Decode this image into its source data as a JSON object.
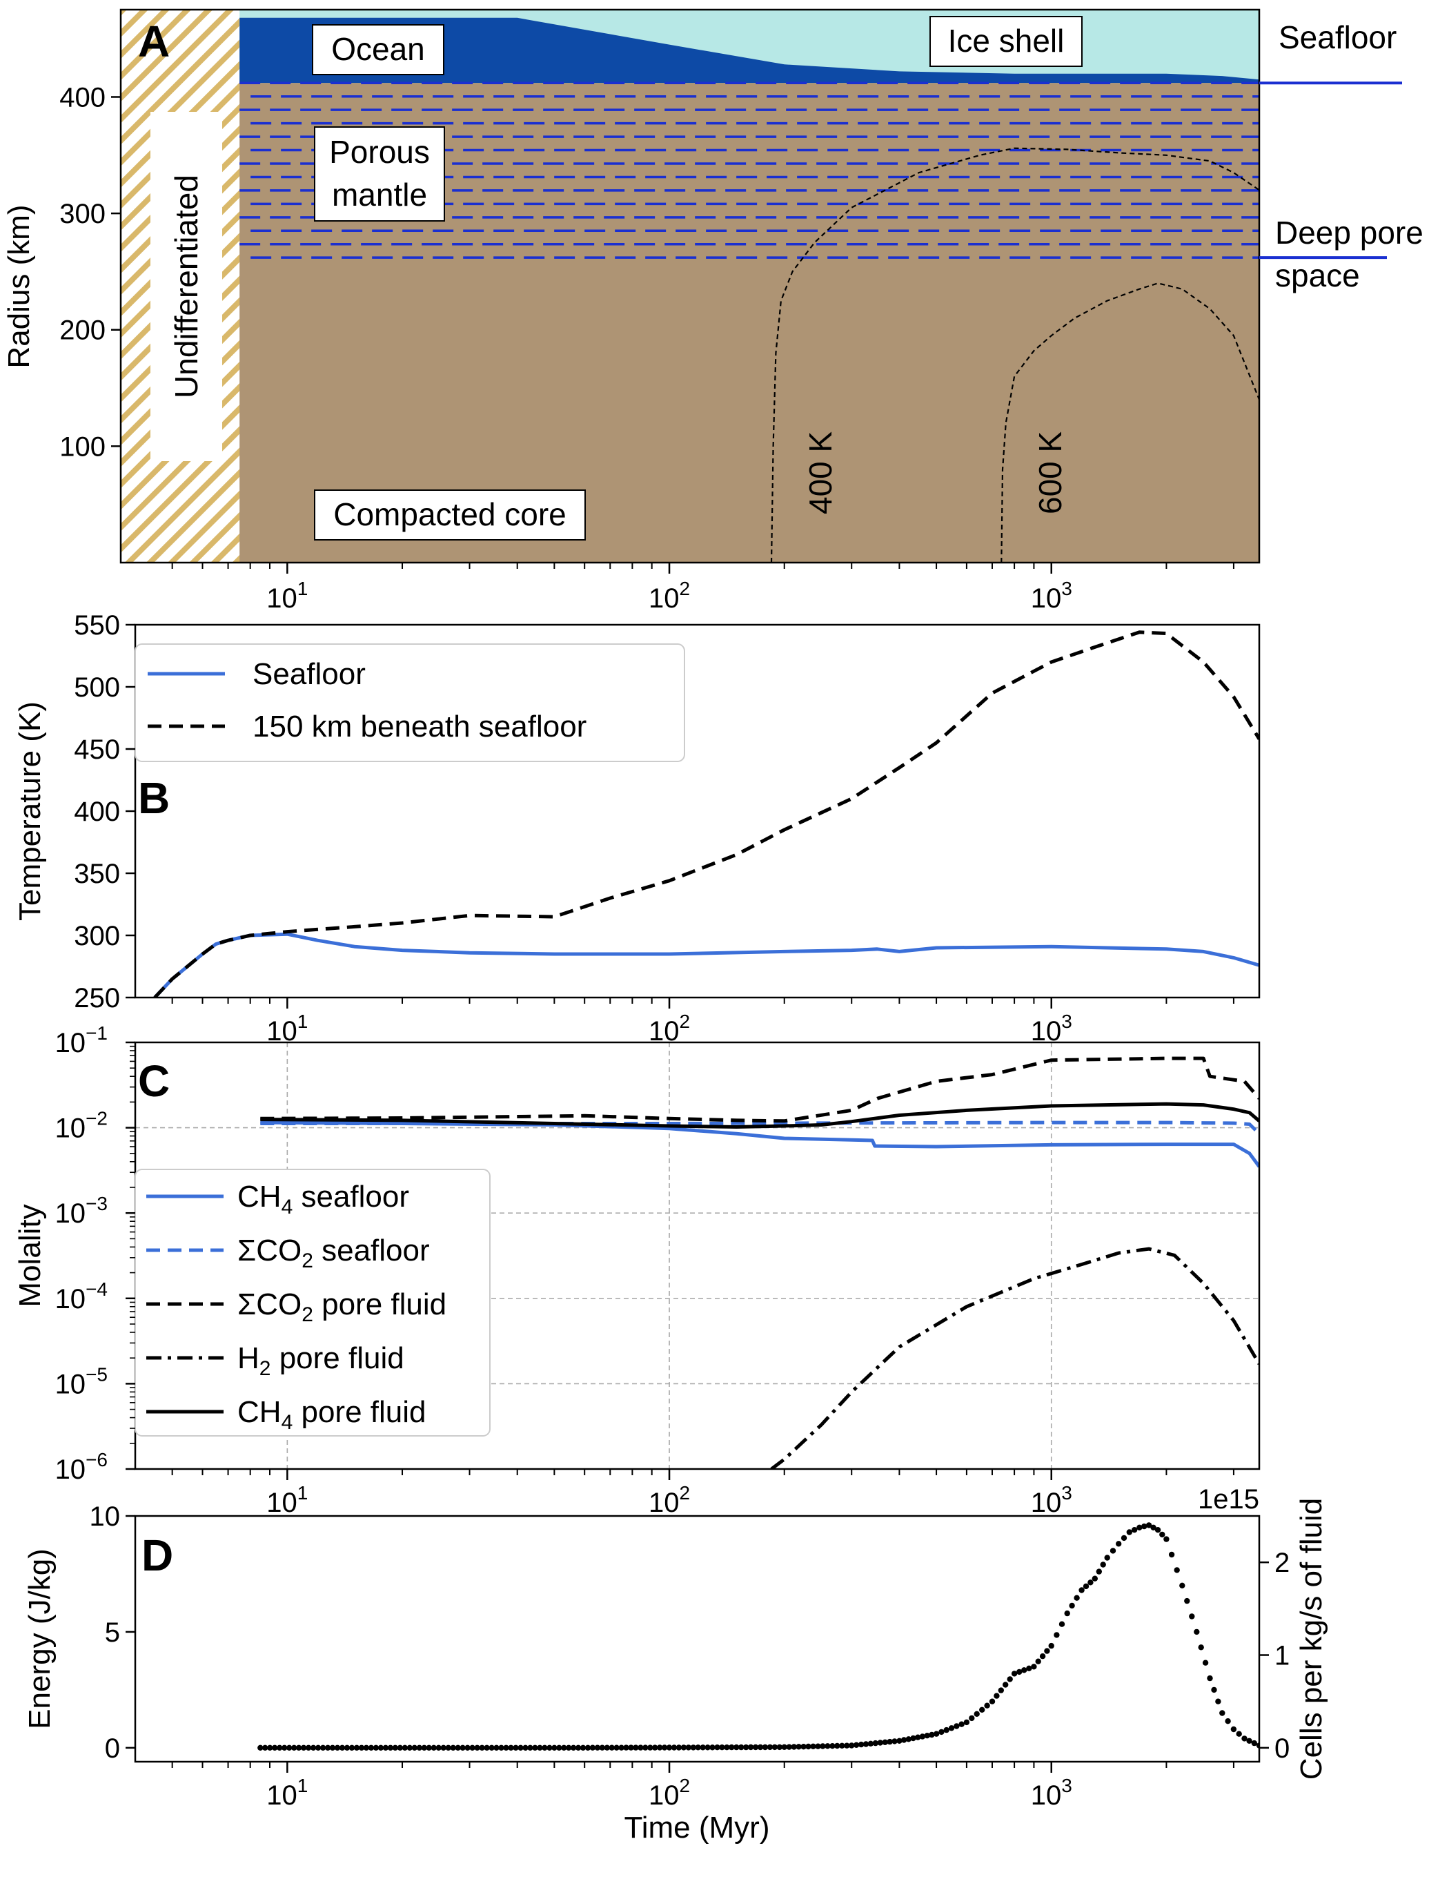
{
  "figure": {
    "xlabel": "Time (Myr)",
    "xlim": [
      4,
      3500
    ],
    "x_ticks": [
      {
        "value": 10,
        "base": "10",
        "exp": "1"
      },
      {
        "value": 100,
        "base": "10",
        "exp": "2"
      },
      {
        "value": 1000,
        "base": "10",
        "exp": "3"
      }
    ]
  },
  "chart_data": [
    {
      "panel": "A",
      "type": "area",
      "ylabel": "Radius (km)",
      "ylim": [
        0,
        475
      ],
      "yticks": [
        "100",
        "200",
        "300",
        "400"
      ],
      "ytick_values": [
        100,
        200,
        300,
        400
      ],
      "regions": {
        "undifferentiated": "Undifferentiated",
        "ocean": "Ocean",
        "ice_shell": "Ice shell",
        "porous_mantle_1": "Porous",
        "porous_mantle_2": "mantle",
        "compacted_core": "Compacted core"
      },
      "right_labels": {
        "seafloor": "Seafloor",
        "deep_pore_1": "Deep pore",
        "deep_pore_2": "space"
      },
      "colors": {
        "ice": "#b7e8e6",
        "ocean": "#0d4aa6",
        "rock": "#ae9474",
        "hatch": "#d9b86a",
        "pore": "#1a2fd1"
      },
      "differentiation_time": 7.5,
      "seafloor_radius": 412,
      "deep_pore_radius": 262,
      "surface_radius": 475,
      "ocean_top": {
        "x": [
          7.5,
          10,
          40,
          100,
          200,
          400,
          800,
          2000,
          2800,
          3500
        ],
        "r": [
          468,
          468,
          468,
          445,
          428,
          422,
          420,
          420,
          418,
          415
        ]
      },
      "contours": [
        {
          "label": "400 K",
          "x": [
            185,
            187,
            190,
            196,
            210,
            240,
            300,
            450,
            650,
            800,
            1100,
            1500,
            2000,
            2600,
            3000,
            3500
          ],
          "r": [
            0,
            100,
            180,
            225,
            250,
            275,
            305,
            335,
            350,
            356,
            355,
            352,
            350,
            345,
            335,
            320
          ]
        },
        {
          "label": "600 K",
          "x": [
            740,
            745,
            760,
            800,
            900,
            1000,
            1150,
            1400,
            1700,
            1900,
            2200,
            2600,
            3000,
            3500
          ],
          "r": [
            0,
            80,
            120,
            160,
            182,
            195,
            210,
            225,
            235,
            240,
            235,
            218,
            195,
            140
          ]
        }
      ]
    },
    {
      "panel": "B",
      "type": "line",
      "ylabel": "Temperature (K)",
      "ylim": [
        250,
        550
      ],
      "yticks": [
        "250",
        "300",
        "350",
        "400",
        "450",
        "500",
        "550"
      ],
      "ytick_values": [
        250,
        300,
        350,
        400,
        450,
        500,
        550
      ],
      "series": [
        {
          "name": "Seafloor",
          "color": "#3b6fd8",
          "dash": "solid",
          "x": [
            4.5,
            5,
            6,
            6.5,
            7,
            8,
            10,
            12,
            15,
            20,
            30,
            50,
            100,
            200,
            300,
            350,
            400,
            500,
            1000,
            2000,
            2500,
            3000,
            3500
          ],
          "y": [
            250,
            265,
            285,
            293,
            296,
            300,
            301,
            296,
            291,
            288,
            286,
            285,
            285,
            287,
            288,
            289,
            287,
            290,
            291,
            289,
            287,
            282,
            276
          ]
        },
        {
          "name": "150 km beneath seafloor",
          "color": "#000000",
          "dash": "dashed",
          "x": [
            4.5,
            5,
            6,
            6.5,
            7,
            8,
            10,
            15,
            20,
            30,
            50,
            70,
            100,
            150,
            200,
            300,
            400,
            500,
            700,
            1000,
            1300,
            1700,
            2000,
            2500,
            3000,
            3500
          ],
          "y": [
            250,
            265,
            285,
            293,
            296,
            300,
            303,
            307,
            310,
            316,
            315,
            330,
            344,
            365,
            385,
            410,
            435,
            455,
            495,
            520,
            532,
            544,
            543,
            520,
            492,
            458
          ]
        }
      ]
    },
    {
      "panel": "C",
      "type": "line",
      "ylabel": "Molality",
      "yscale": "log",
      "ylim": [
        1e-06,
        0.1
      ],
      "yticks": [
        {
          "value": 1e-06,
          "base": "10",
          "exp": "−6"
        },
        {
          "value": 1e-05,
          "base": "10",
          "exp": "−5"
        },
        {
          "value": 0.0001,
          "base": "10",
          "exp": "−4"
        },
        {
          "value": 0.001,
          "base": "10",
          "exp": "−3"
        },
        {
          "value": 0.01,
          "base": "10",
          "exp": "−2"
        },
        {
          "value": 0.1,
          "base": "10",
          "exp": "−1"
        }
      ],
      "grid": true,
      "series": [
        {
          "name": "CH4 seafloor",
          "label_main": "CH",
          "label_sub": "4",
          "label_rest": " seafloor",
          "color": "#3b6fd8",
          "dash": "solid",
          "x": [
            8.5,
            20,
            50,
            100,
            150,
            200,
            300,
            340,
            345,
            500,
            1000,
            2000,
            3000,
            3300,
            3500
          ],
          "y": [
            0.0115,
            0.0112,
            0.0108,
            0.0098,
            0.0085,
            0.0075,
            0.0072,
            0.0071,
            0.0061,
            0.006,
            0.0063,
            0.0064,
            0.0064,
            0.005,
            0.0035
          ]
        },
        {
          "name": "ΣCO2 seafloor",
          "label_main": "ΣCO",
          "label_sub": "2",
          "label_rest": " seafloor",
          "color": "#3b6fd8",
          "dash": "dashed",
          "x": [
            8.5,
            20,
            50,
            100,
            200,
            400,
            1000,
            2000,
            3000,
            3300,
            3500
          ],
          "y": [
            0.0112,
            0.0112,
            0.0112,
            0.0112,
            0.0113,
            0.0114,
            0.0115,
            0.0115,
            0.0113,
            0.011,
            0.0085
          ]
        },
        {
          "name": "ΣCO2 pore fluid",
          "label_main": "ΣCO",
          "label_sub": "2",
          "label_rest": " pore fluid",
          "color": "#000000",
          "dash": "dashed",
          "x": [
            8.5,
            20,
            40,
            60,
            100,
            150,
            200,
            300,
            350,
            500,
            700,
            1000,
            2000,
            2500,
            2600,
            3200,
            3500
          ],
          "y": [
            0.0128,
            0.013,
            0.0135,
            0.0138,
            0.0128,
            0.0122,
            0.012,
            0.016,
            0.022,
            0.035,
            0.042,
            0.062,
            0.065,
            0.065,
            0.04,
            0.035,
            0.022
          ]
        },
        {
          "name": "H2 pore fluid",
          "label_main": "H",
          "label_sub": "2",
          "label_rest": " pore fluid",
          "color": "#000000",
          "dash": "dashdot",
          "x": [
            185,
            200,
            250,
            300,
            400,
            600,
            900,
            1200,
            1500,
            1800,
            2100,
            2500,
            3000,
            3500
          ],
          "y": [
            1e-06,
            1.3e-06,
            3.3e-06,
            8e-06,
            2.7e-05,
            8e-05,
            0.00017,
            0.00025,
            0.00034,
            0.00038,
            0.00032,
            0.00015,
            5.5e-05,
            1.7e-05
          ]
        },
        {
          "name": "CH4 pore fluid",
          "label_main": "CH",
          "label_sub": "4",
          "label_rest": " pore fluid",
          "color": "#000000",
          "dash": "solid",
          "x": [
            8.5,
            20,
            50,
            100,
            150,
            200,
            250,
            300,
            400,
            600,
            1000,
            2000,
            2500,
            3000,
            3300,
            3500
          ],
          "y": [
            0.0125,
            0.0122,
            0.0112,
            0.0105,
            0.0102,
            0.0105,
            0.0108,
            0.0118,
            0.014,
            0.016,
            0.018,
            0.019,
            0.0185,
            0.0165,
            0.015,
            0.012
          ]
        }
      ]
    },
    {
      "panel": "D",
      "type": "scatter",
      "ylabel": "Energy (J/kg)",
      "ylim": [
        -0.6,
        10
      ],
      "yticks": [
        "0",
        "5",
        "10"
      ],
      "ytick_values": [
        0,
        5,
        10
      ],
      "y2label": "Cells per kg/s of fluid",
      "y2_offset": "1e15",
      "y2lim": [
        -0.15,
        2.5
      ],
      "y2ticks": [
        "0",
        "1",
        "2"
      ],
      "y2tick_values": [
        0,
        1,
        2
      ],
      "series": [
        {
          "name": "Energy",
          "color": "#000000",
          "x": [
            8.5,
            50,
            100,
            200,
            300,
            400,
            500,
            600,
            700,
            800,
            900,
            1000,
            1100,
            1200,
            1300,
            1400,
            1500,
            1600,
            1700,
            1800,
            1900,
            2000,
            2200,
            2400,
            2600,
            2800,
            3000,
            3200,
            3500
          ],
          "y": [
            0,
            0,
            0.01,
            0.03,
            0.1,
            0.3,
            0.6,
            1.1,
            2.0,
            3.2,
            3.5,
            4.4,
            5.8,
            6.8,
            7.3,
            8.2,
            8.8,
            9.3,
            9.5,
            9.6,
            9.4,
            9.0,
            7.0,
            5.0,
            3.0,
            1.5,
            0.8,
            0.4,
            0.1
          ]
        }
      ]
    }
  ]
}
